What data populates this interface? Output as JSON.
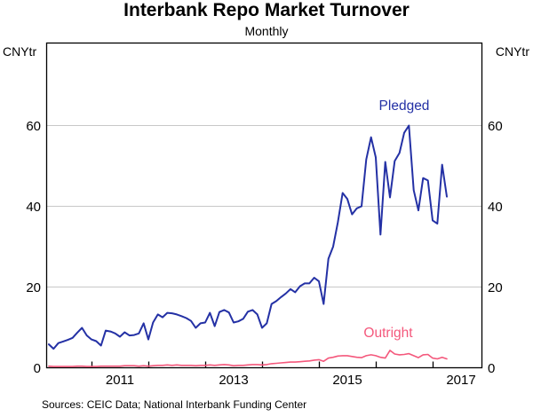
{
  "header": {
    "title": "Interbank Repo Market Turnover",
    "subtitle": "Monthly"
  },
  "axes": {
    "left_unit": "CNYtr",
    "right_unit": "CNYtr",
    "y_tick_labels": [
      0,
      20,
      40,
      60
    ],
    "y_gridlines": [
      20,
      40,
      60
    ],
    "x_tick_years": [
      2011,
      2012,
      2013,
      2014,
      2015,
      2016,
      2017
    ],
    "x_year_labels": [
      "2011",
      "2013",
      "2015",
      "2017"
    ]
  },
  "series_labels": {
    "pledged": "Pledged",
    "outright": "Outright"
  },
  "colors": {
    "pledged": "#2431a5",
    "outright": "#f4587c",
    "grid": "#c8c8c8",
    "axis": "#000000"
  },
  "footer": {
    "sources": "Sources: CEIC Data; National Interbank Funding Center"
  },
  "chart_data": {
    "type": "line",
    "title": "Interbank Repo Market Turnover",
    "subtitle": "Monthly",
    "ylabel": "CNYtr",
    "ylim": [
      0,
      80.7
    ],
    "grid": "horizontal",
    "frequency": "monthly",
    "x_start": "2010-04",
    "x_end": "2017-04",
    "series": [
      {
        "name": "Pledged",
        "values": [
          5.8,
          4.7,
          6.1,
          6.5,
          6.9,
          7.4,
          8.7,
          9.9,
          8.0,
          7.0,
          6.6,
          5.5,
          9.2,
          9.0,
          8.5,
          7.7,
          8.8,
          8.0,
          8.1,
          8.5,
          11.0,
          7.0,
          11.2,
          13.2,
          12.5,
          13.6,
          13.5,
          13.2,
          12.8,
          12.3,
          11.6,
          9.9,
          11.0,
          11.2,
          13.6,
          10.3,
          13.8,
          14.3,
          13.7,
          11.2,
          11.5,
          12.1,
          13.9,
          14.3,
          13.2,
          9.9,
          11.0,
          15.8,
          16.5,
          17.5,
          18.4,
          19.5,
          18.7,
          20.2,
          20.9,
          20.9,
          22.3,
          21.4,
          15.8,
          27.0,
          30.0,
          36.0,
          43.3,
          41.8,
          38.0,
          39.5,
          40.0,
          51.6,
          57.1,
          52.1,
          33.0,
          51.0,
          42.2,
          51.2,
          53.2,
          58.2,
          60.0,
          44.0,
          39.0,
          47.0,
          46.4,
          36.5,
          35.7,
          50.3,
          42.4
        ]
      },
      {
        "name": "Outright",
        "values": [
          0.4,
          0.3,
          0.3,
          0.3,
          0.3,
          0.3,
          0.4,
          0.4,
          0.3,
          0.3,
          0.3,
          0.4,
          0.4,
          0.4,
          0.4,
          0.4,
          0.5,
          0.5,
          0.5,
          0.4,
          0.5,
          0.4,
          0.5,
          0.6,
          0.6,
          0.7,
          0.6,
          0.7,
          0.6,
          0.6,
          0.6,
          0.5,
          0.6,
          0.6,
          0.7,
          0.6,
          0.7,
          0.8,
          0.7,
          0.5,
          0.6,
          0.6,
          0.7,
          0.8,
          0.8,
          0.7,
          0.8,
          1.0,
          1.1,
          1.2,
          1.3,
          1.4,
          1.4,
          1.5,
          1.6,
          1.7,
          1.9,
          2.0,
          1.6,
          2.4,
          2.6,
          2.9,
          3.0,
          3.0,
          2.8,
          2.6,
          2.5,
          3.0,
          3.2,
          3.0,
          2.6,
          2.4,
          4.3,
          3.4,
          3.2,
          3.3,
          3.5,
          3.0,
          2.5,
          3.2,
          3.3,
          2.4,
          2.2,
          2.6,
          2.2
        ]
      }
    ]
  }
}
